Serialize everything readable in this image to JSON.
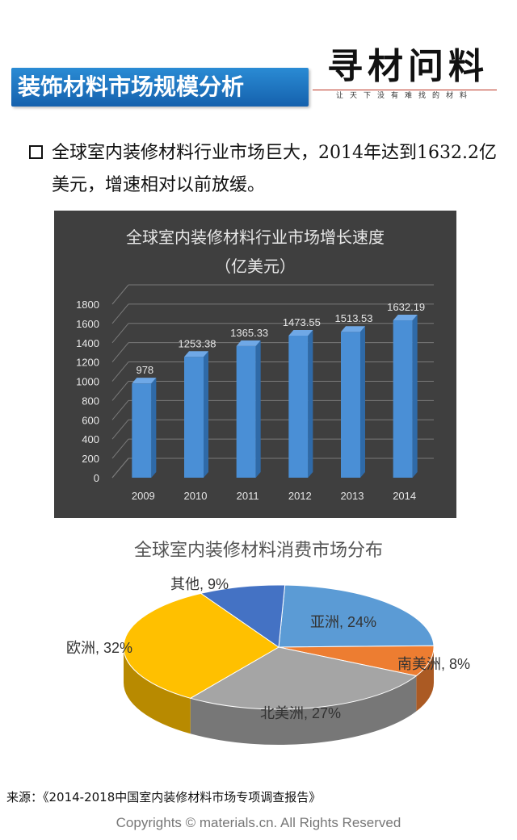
{
  "header": {
    "title": "装饰材料市场规模分析",
    "logo_text": "寻材问料",
    "logo_slogan": "让天下没有难找的材料"
  },
  "bullet": {
    "text": "全球室内装修材料行业市场巨大，2014年达到1632.2亿美元，增速相对以前放缓。"
  },
  "chart_data": [
    {
      "type": "bar",
      "title": "全球室内装修材料行业市场增长速度",
      "subtitle": "（亿美元）",
      "categories": [
        "2009",
        "2010",
        "2011",
        "2012",
        "2013",
        "2014"
      ],
      "values": [
        978,
        1253.38,
        1365.33,
        1473.55,
        1513.53,
        1632.19
      ],
      "labels": [
        "978",
        "1253.38",
        "1365.33",
        "1473.55",
        "1513.53",
        "1632.19"
      ],
      "yticks": [
        "0",
        "200",
        "400",
        "600",
        "800",
        "1000",
        "1200",
        "1400",
        "1600",
        "1800"
      ],
      "ylim": [
        0,
        1800
      ],
      "grid": true,
      "bar_color": "#4a8fd6",
      "background": "#3f3f3f"
    },
    {
      "type": "pie",
      "title": "全球室内装修材料消费市场分布",
      "slices": [
        {
          "label": "亚洲, 24%",
          "value": 24,
          "color": "#5b9bd5"
        },
        {
          "label": "南美洲, 8%",
          "value": 8,
          "color": "#ed7d31"
        },
        {
          "label": "北美洲, 27%",
          "value": 27,
          "color": "#a5a5a5"
        },
        {
          "label": "欧洲, 32%",
          "value": 32,
          "color": "#ffc000"
        },
        {
          "label": "其他, 9%",
          "value": 9,
          "color": "#4472c4"
        }
      ]
    }
  ],
  "footer": {
    "source": "来源：《2014-2018中国室内装修材料市场专项调查报告》",
    "copyright": "Copyrights © materials.cn. All Rights Reserved"
  }
}
